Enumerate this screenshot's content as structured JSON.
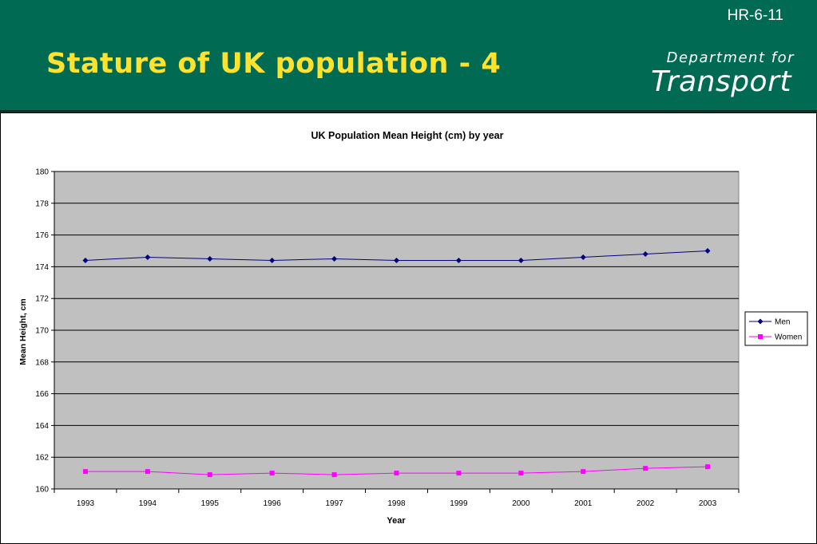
{
  "slide": {
    "code": "HR-6-11",
    "title": "Stature of UK population - 4",
    "logo": {
      "line1": "Department for",
      "line2": "Transport"
    }
  },
  "colors": {
    "header_bg": "#006B52",
    "title": "#FFE22E",
    "plot_bg": "#C0C0C0",
    "men": "#000080",
    "women": "#FF00FF"
  },
  "chart_data": {
    "type": "line",
    "title": "UK Population Mean Height (cm) by year",
    "xlabel": "Year",
    "ylabel": "Mean Height, cm",
    "ylim": [
      160,
      180
    ],
    "yticks": [
      160,
      162,
      164,
      166,
      168,
      170,
      172,
      174,
      176,
      178,
      180
    ],
    "grid": true,
    "legend": "right",
    "categories": [
      "1993",
      "1994",
      "1995",
      "1996",
      "1997",
      "1998",
      "1999",
      "2000",
      "2001",
      "2002",
      "2003"
    ],
    "series": [
      {
        "name": "Men",
        "marker": "diamond",
        "color": "#000080",
        "values": [
          174.4,
          174.6,
          174.5,
          174.4,
          174.5,
          174.4,
          174.4,
          174.4,
          174.6,
          174.8,
          175.0
        ]
      },
      {
        "name": "Women",
        "marker": "square",
        "color": "#FF00FF",
        "values": [
          161.1,
          161.1,
          160.9,
          161.0,
          160.9,
          161.0,
          161.0,
          161.0,
          161.1,
          161.3,
          161.4
        ]
      }
    ]
  }
}
